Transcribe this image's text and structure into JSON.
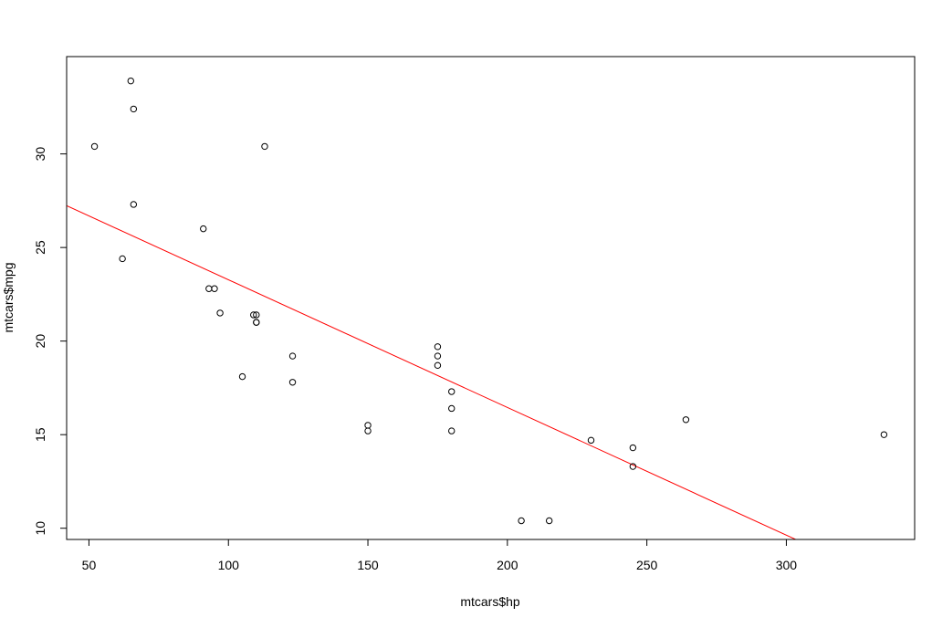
{
  "chart_data": {
    "type": "scatter",
    "title": "",
    "xlabel": "mtcars$hp",
    "ylabel": "mtcars$mpg",
    "xlim": [
      42,
      346
    ],
    "ylim": [
      9.4,
      35.2
    ],
    "x_ticks": [
      50,
      100,
      150,
      200,
      250,
      300
    ],
    "y_ticks": [
      10,
      15,
      20,
      25,
      30
    ],
    "grid": false,
    "legend": "none",
    "point_color": "#000000",
    "series": [
      {
        "x": [
          110,
          110,
          93,
          110,
          175,
          105,
          245,
          62,
          95,
          123,
          123,
          180,
          180,
          180,
          205,
          215,
          230,
          66,
          52,
          65,
          97,
          150,
          150,
          245,
          175,
          66,
          91,
          113,
          264,
          175,
          335,
          109
        ],
        "y": [
          21.0,
          21.0,
          22.8,
          21.4,
          18.7,
          18.1,
          14.3,
          24.4,
          22.8,
          19.2,
          17.8,
          16.4,
          17.3,
          15.2,
          10.4,
          10.4,
          14.7,
          32.4,
          30.4,
          33.9,
          21.5,
          15.5,
          15.2,
          13.3,
          19.2,
          27.3,
          26.0,
          30.4,
          15.8,
          19.7,
          15.0,
          21.4
        ]
      }
    ],
    "regression_line": {
      "color": "#ff0000",
      "intercept": 30.09886,
      "slope": -0.06823
    }
  }
}
